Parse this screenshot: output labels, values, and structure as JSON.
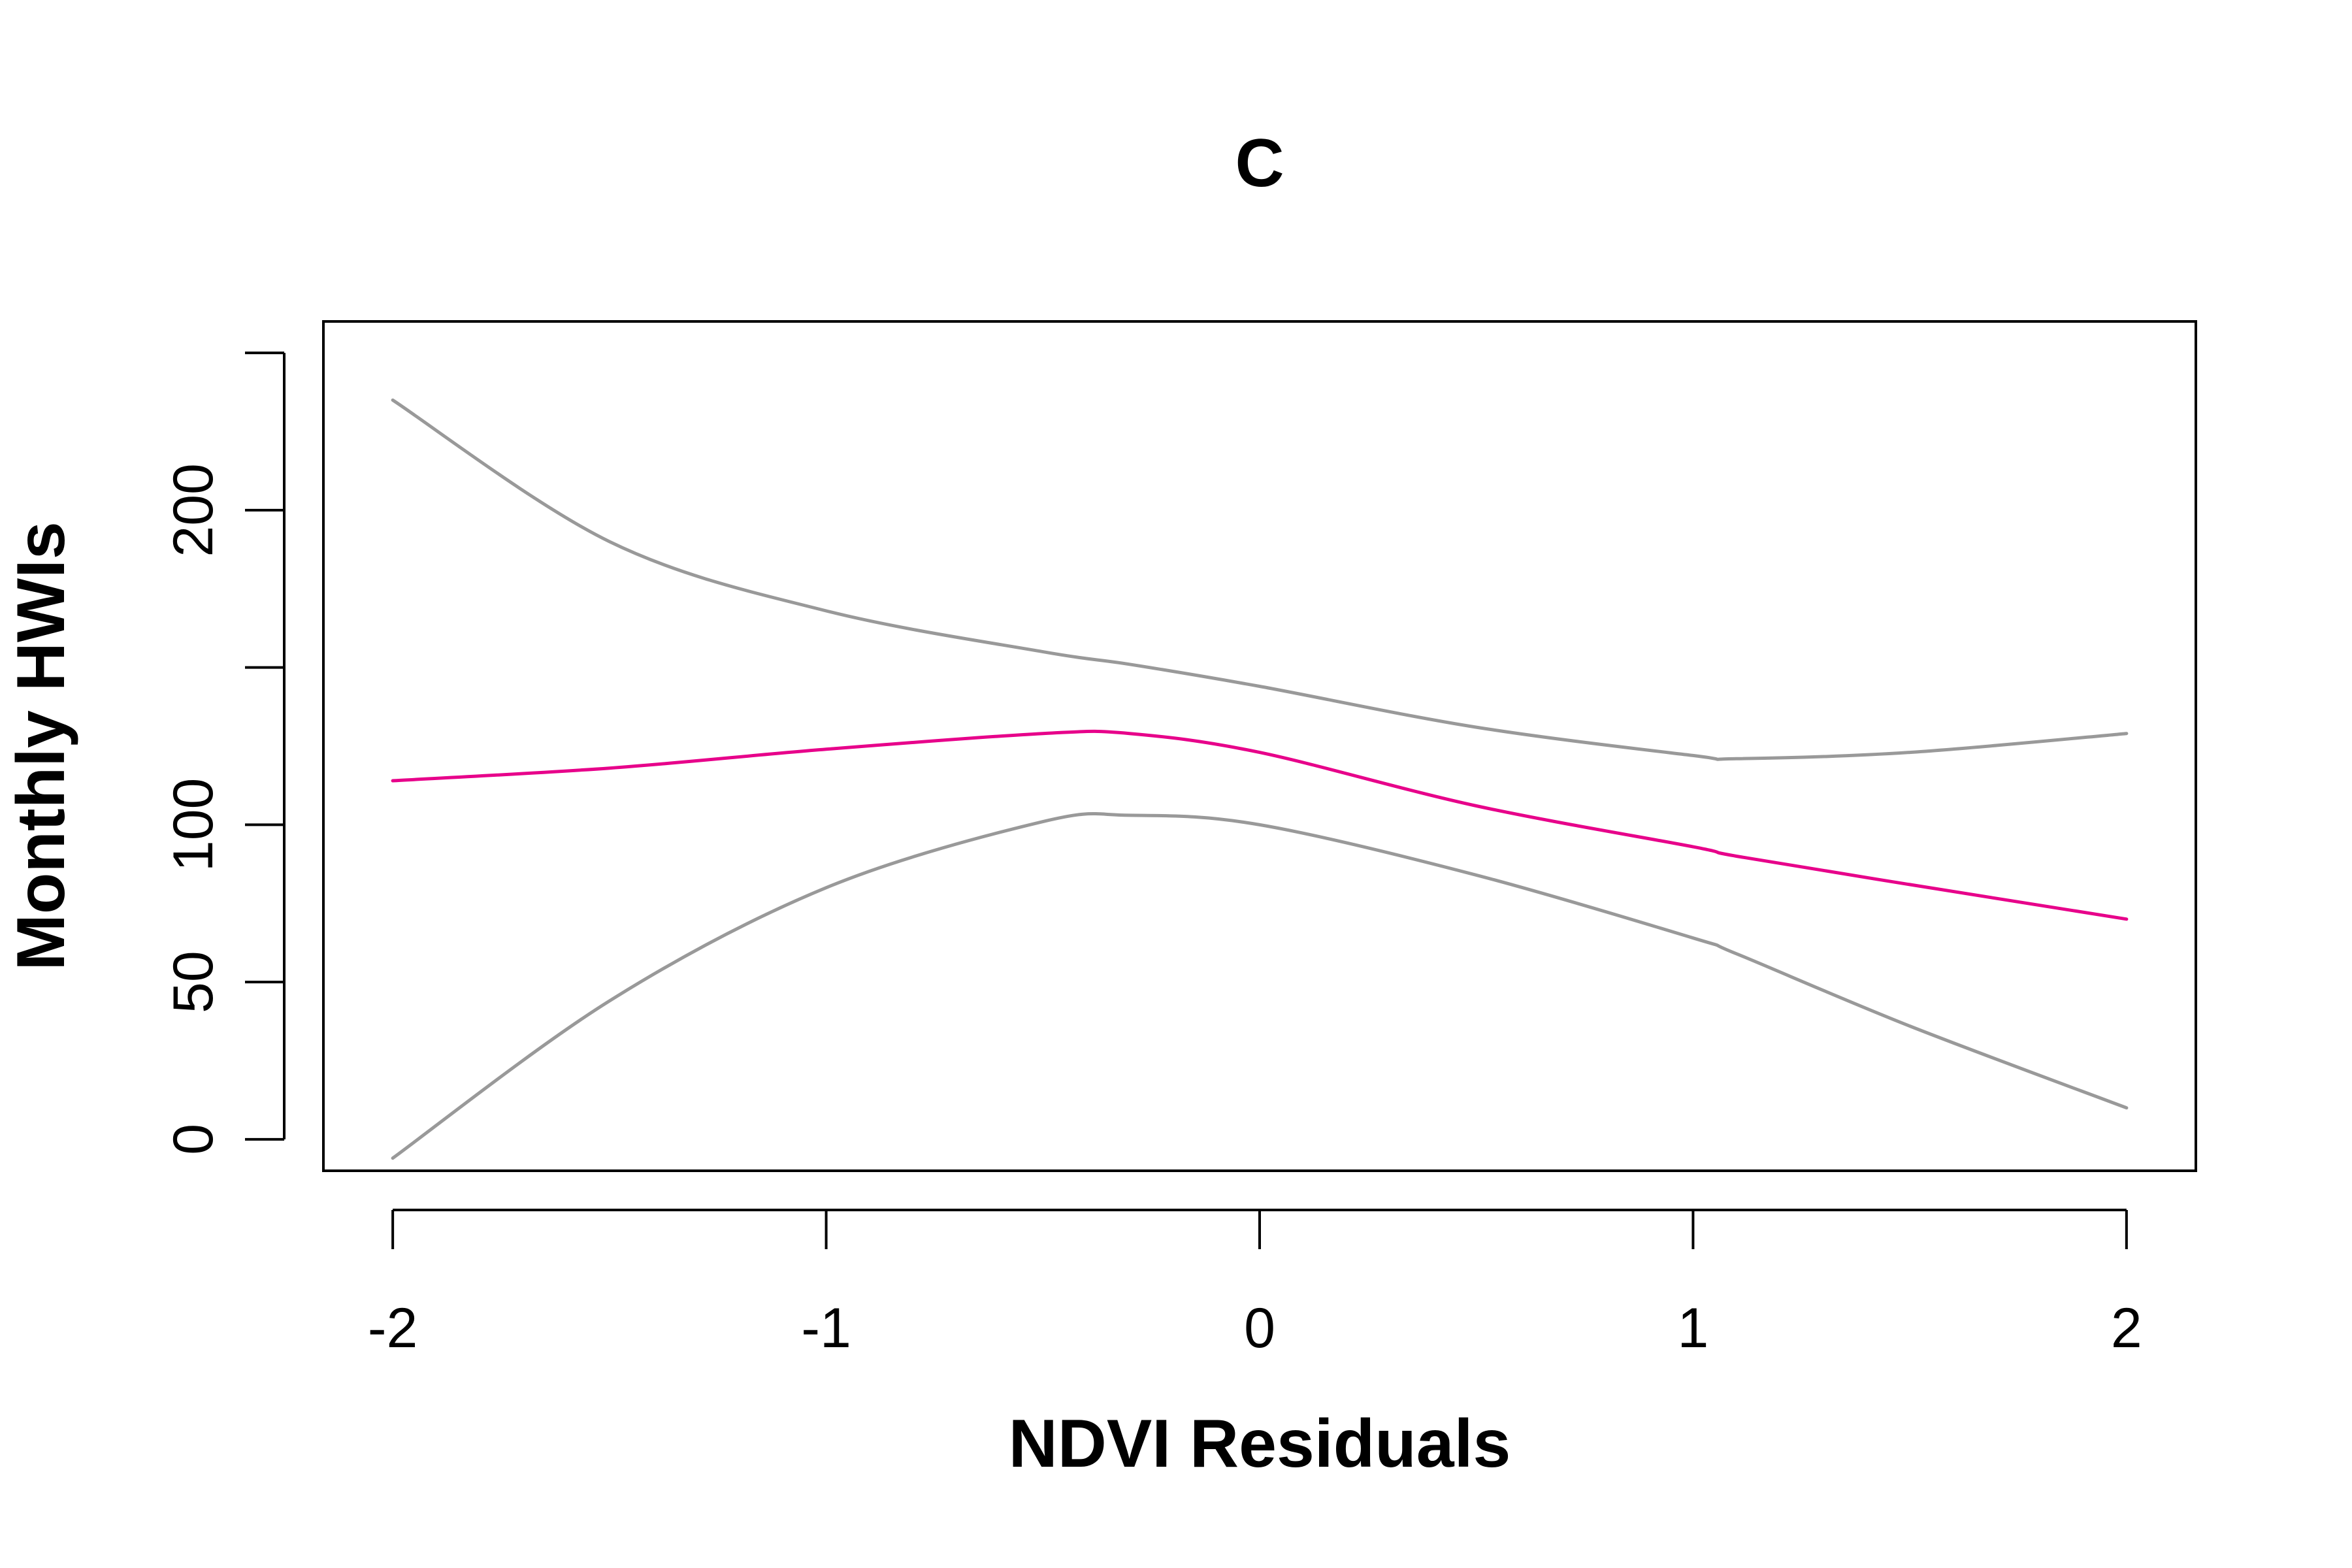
{
  "chart_data": {
    "type": "line",
    "title": "C",
    "xlabel": "NDVI Residuals",
    "ylabel": "Monthly HWIs",
    "xlim": [
      -2.16,
      2.16
    ],
    "ylim": [
      -10,
      260
    ],
    "x_ticks": [
      -2,
      -1,
      0,
      1,
      2
    ],
    "x_tick_labels": [
      "-2",
      "-1",
      "0",
      "1",
      "2"
    ],
    "y_ticks": [
      0,
      50,
      100,
      150,
      200,
      250
    ],
    "y_tick_labels": [
      "0",
      "50",
      "100",
      "",
      "200",
      ""
    ],
    "grid": false,
    "legend": "none",
    "x": [
      -2,
      -1.5,
      -1,
      -0.5,
      -0.3,
      0,
      0.5,
      1,
      1.1,
      1.5,
      2
    ],
    "series": [
      {
        "role": "upper-bound",
        "color": "#999999",
        "values": [
          235,
          190,
          168,
          155,
          151,
          144,
          131,
          122,
          121,
          123,
          129
        ]
      },
      {
        "role": "fit",
        "color": "#E7008A",
        "values": [
          114,
          118,
          124,
          129,
          129,
          123,
          106,
          93,
          90,
          81,
          70
        ]
      },
      {
        "role": "lower-bound",
        "color": "#999999",
        "values": [
          -6,
          44,
          80,
          101,
          103,
          100,
          84,
          64,
          59,
          36,
          10
        ]
      }
    ]
  }
}
